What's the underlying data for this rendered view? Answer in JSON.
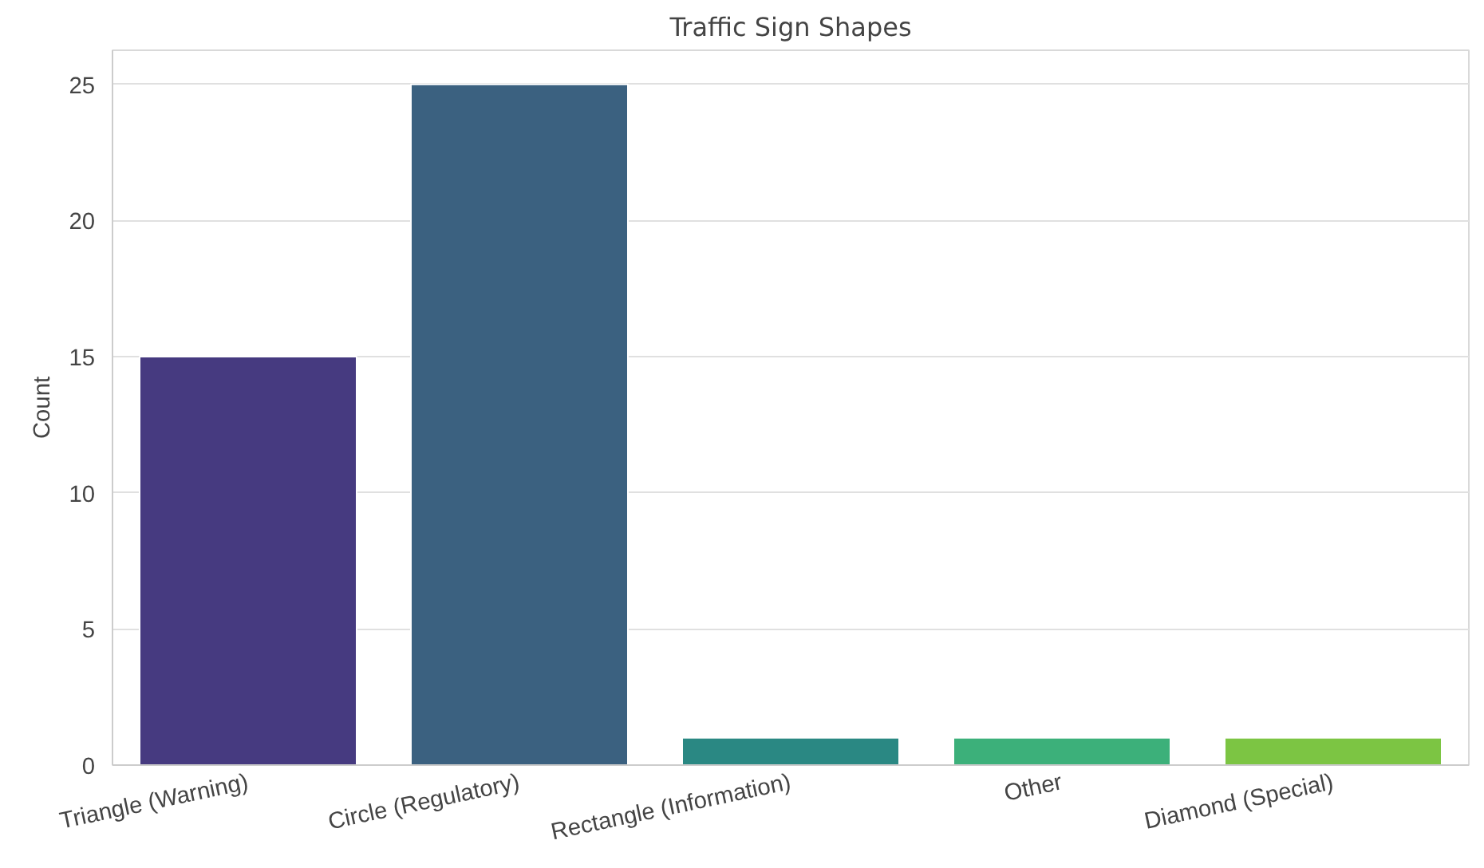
{
  "chart_data": {
    "type": "bar",
    "title": "Traffic Sign Shapes",
    "ylabel": "Count",
    "categories": [
      "Triangle (Warning)",
      "Circle (Regulatory)",
      "Rectangle (Information)",
      "Other",
      "Diamond (Special)"
    ],
    "values": [
      15,
      25,
      1,
      1,
      1
    ],
    "colors": [
      "#463a80",
      "#3b6180",
      "#2a8883",
      "#3cb07a",
      "#7cc543"
    ],
    "ylim": [
      0,
      26.25
    ],
    "yticks": [
      0,
      5,
      10,
      15,
      20,
      25
    ],
    "grid": "y"
  }
}
